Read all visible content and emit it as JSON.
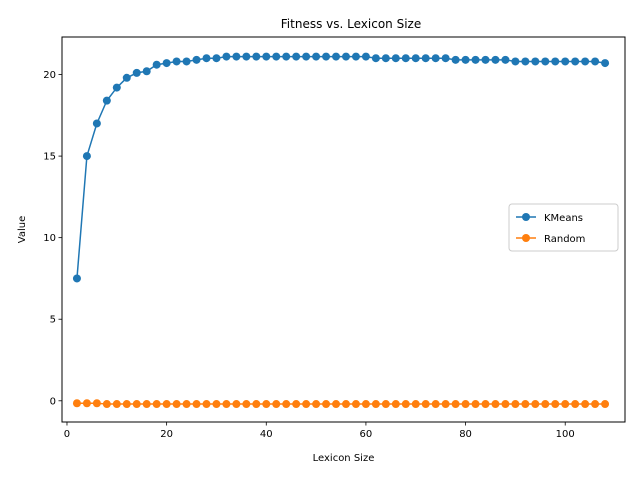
{
  "chart_data": {
    "type": "line",
    "title": "Fitness vs. Lexicon Size",
    "xlabel": "Lexicon Size",
    "ylabel": "Value",
    "xlim": [
      -1,
      112
    ],
    "ylim": [
      -1.3,
      22.3
    ],
    "xticks": [
      0,
      20,
      40,
      60,
      80,
      100
    ],
    "yticks": [
      0,
      5,
      10,
      15,
      20
    ],
    "grid": false,
    "legend_position": "center-right",
    "x": [
      2,
      4,
      6,
      8,
      10,
      12,
      14,
      16,
      18,
      20,
      22,
      24,
      26,
      28,
      30,
      32,
      34,
      36,
      38,
      40,
      42,
      44,
      46,
      48,
      50,
      52,
      54,
      56,
      58,
      60,
      62,
      64,
      66,
      68,
      70,
      72,
      74,
      76,
      78,
      80,
      82,
      84,
      86,
      88,
      90,
      92,
      94,
      96,
      98,
      100,
      102,
      104,
      106,
      108
    ],
    "series": [
      {
        "name": "KMeans",
        "color": "#1f77b4",
        "values": [
          7.5,
          15.0,
          17.0,
          18.4,
          19.2,
          19.8,
          20.1,
          20.2,
          20.6,
          20.7,
          20.8,
          20.8,
          20.9,
          21.0,
          21.0,
          21.1,
          21.1,
          21.1,
          21.1,
          21.1,
          21.1,
          21.1,
          21.1,
          21.1,
          21.1,
          21.1,
          21.1,
          21.1,
          21.1,
          21.1,
          21.0,
          21.0,
          21.0,
          21.0,
          21.0,
          21.0,
          21.0,
          21.0,
          20.9,
          20.9,
          20.9,
          20.9,
          20.9,
          20.9,
          20.8,
          20.8,
          20.8,
          20.8,
          20.8,
          20.8,
          20.8,
          20.8,
          20.8,
          20.7
        ]
      },
      {
        "name": "Random",
        "color": "#ff7f0e",
        "values": [
          -0.15,
          -0.15,
          -0.15,
          -0.2,
          -0.2,
          -0.2,
          -0.2,
          -0.2,
          -0.2,
          -0.2,
          -0.2,
          -0.2,
          -0.2,
          -0.2,
          -0.2,
          -0.2,
          -0.2,
          -0.2,
          -0.2,
          -0.2,
          -0.2,
          -0.2,
          -0.2,
          -0.2,
          -0.2,
          -0.2,
          -0.2,
          -0.2,
          -0.2,
          -0.2,
          -0.2,
          -0.2,
          -0.2,
          -0.2,
          -0.2,
          -0.2,
          -0.2,
          -0.2,
          -0.2,
          -0.2,
          -0.2,
          -0.2,
          -0.2,
          -0.2,
          -0.2,
          -0.2,
          -0.2,
          -0.2,
          -0.2,
          -0.2,
          -0.2,
          -0.2,
          -0.2,
          -0.2
        ]
      }
    ]
  }
}
